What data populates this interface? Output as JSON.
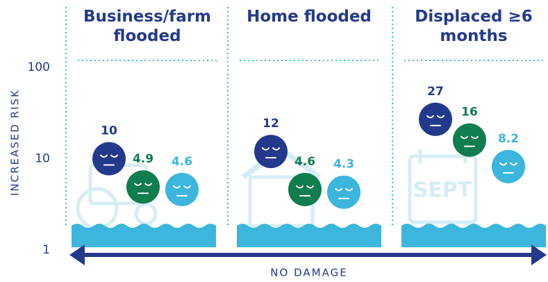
{
  "chart_data": {
    "type": "faces",
    "categories": [
      "Business/farm flooded",
      "Home flooded",
      "Displaced ≥6 months"
    ],
    "series": [
      {
        "color": "#233a8c",
        "values": [
          10,
          12,
          27
        ]
      },
      {
        "color": "#0f7d4e",
        "values": [
          4.9,
          4.6,
          16
        ]
      },
      {
        "color": "#3cb6dc",
        "values": [
          4.6,
          4.3,
          8.2
        ]
      }
    ],
    "ylabel": "INCREASED RISK",
    "xlabel": "NO DAMAGE",
    "ylim": [
      1,
      100
    ],
    "yticks": [
      1,
      10,
      100
    ],
    "log_scale": true,
    "calendar_label": "SEPT"
  }
}
